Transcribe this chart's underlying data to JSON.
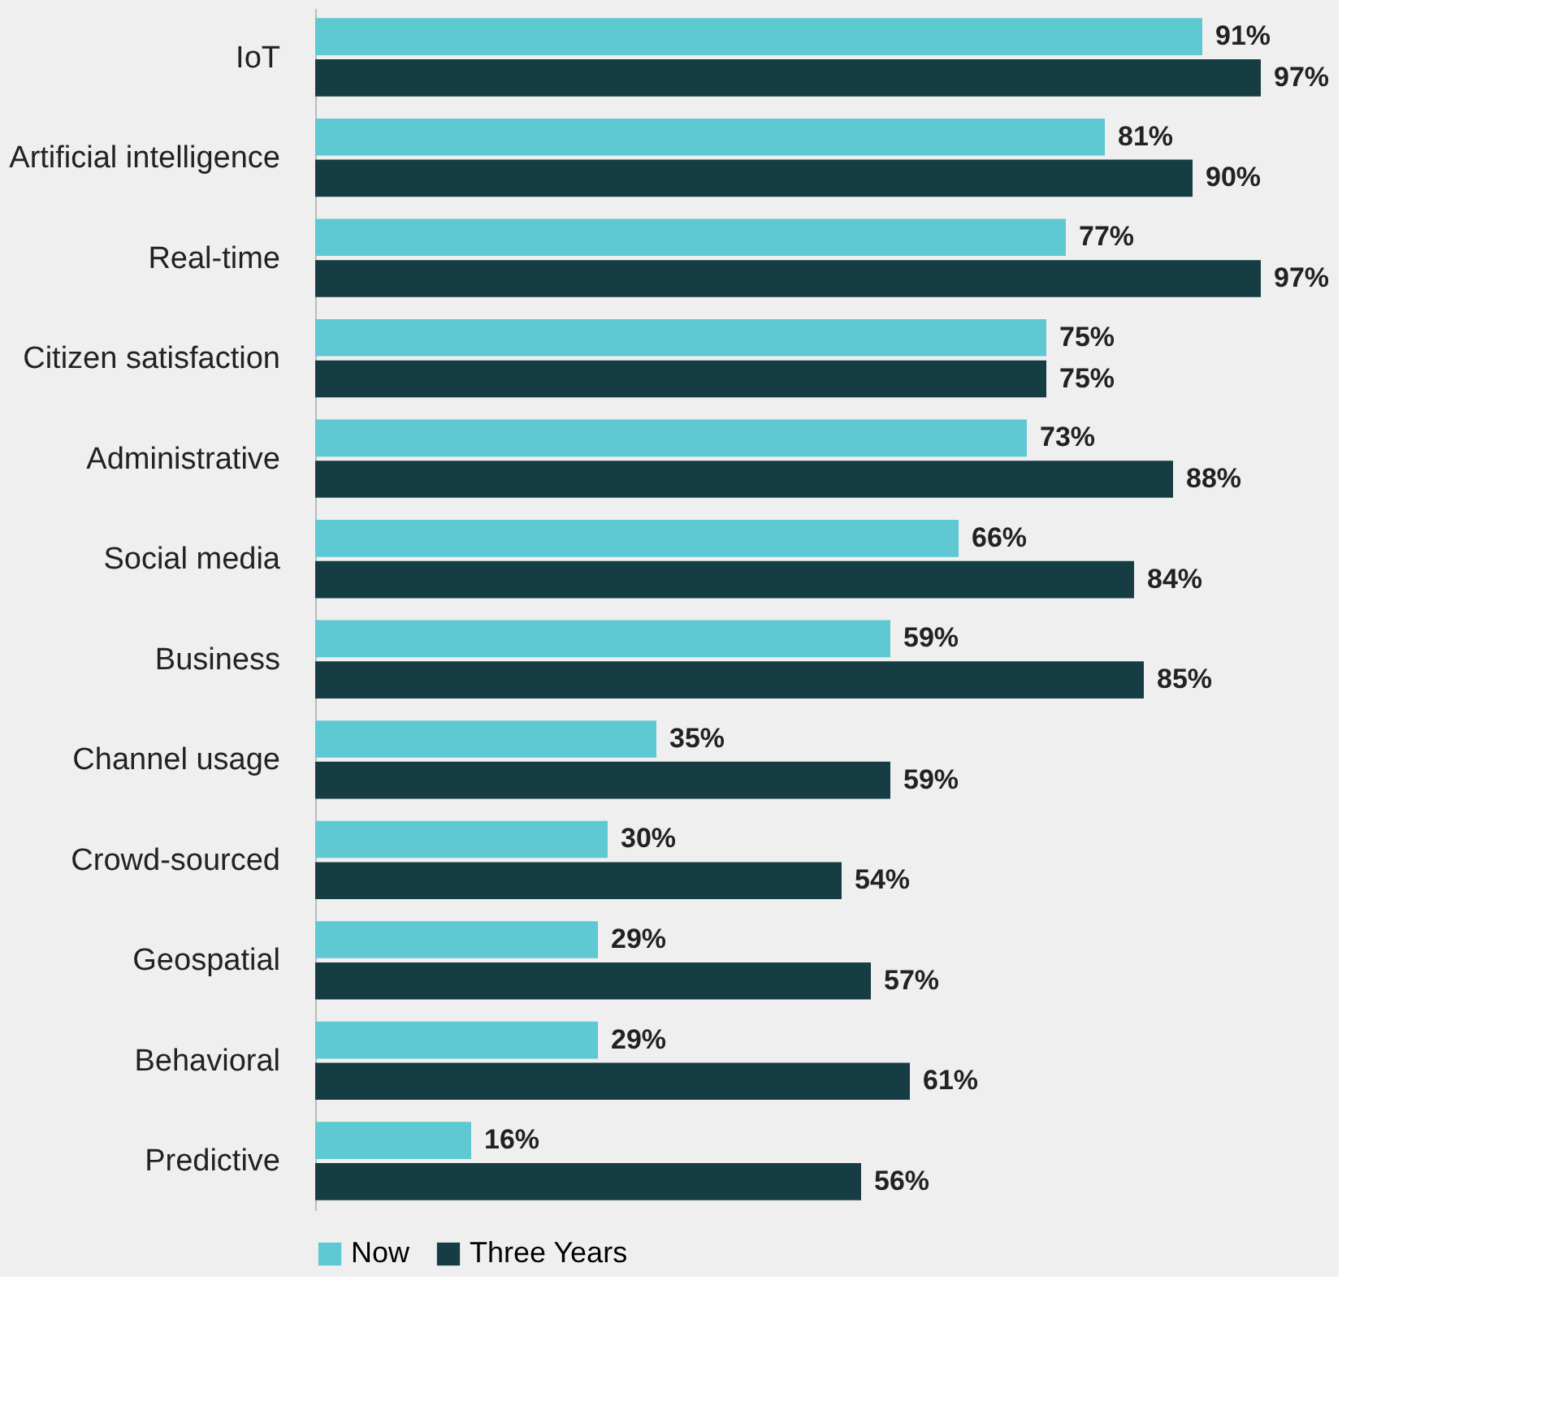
{
  "chart_data": {
    "type": "bar",
    "orientation": "horizontal",
    "categories": [
      "IoT",
      "Artificial intelligence",
      "Real-time",
      "Citizen satisfaction",
      "Administrative",
      "Social media",
      "Business",
      "Channel usage",
      "Crowd-sourced",
      "Geospatial",
      "Behavioral",
      "Predictive"
    ],
    "series": [
      {
        "name": "Now",
        "color": "#5ec8d3",
        "values": [
          91,
          81,
          77,
          75,
          73,
          66,
          59,
          35,
          30,
          29,
          29,
          16
        ],
        "value_labels": [
          "91%",
          "81%",
          "77%",
          "75%",
          "73%",
          "66%",
          "59%",
          "35%",
          "30%",
          "29%",
          "29%",
          "16%"
        ]
      },
      {
        "name": "Three Years",
        "color": "#163d43",
        "values": [
          97,
          90,
          97,
          75,
          88,
          84,
          85,
          59,
          54,
          57,
          61,
          56
        ],
        "value_labels": [
          "97%",
          "90%",
          "97%",
          "75%",
          "88%",
          "84%",
          "85%",
          "59%",
          "54%",
          "57%",
          "61%",
          "56%"
        ]
      }
    ],
    "tick_labels": "y",
    "grid": false,
    "legend": "bottom"
  }
}
